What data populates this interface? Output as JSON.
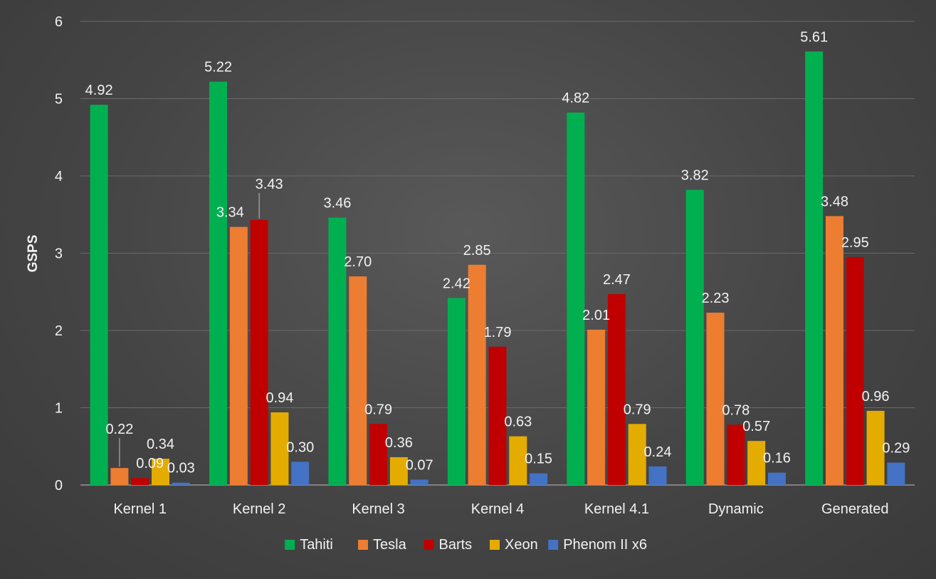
{
  "chart_data": {
    "type": "bar",
    "title": "",
    "xlabel": "",
    "ylabel": "GSPS",
    "ylim": [
      0,
      6
    ],
    "yticks": [
      0,
      1,
      2,
      3,
      4,
      5,
      6
    ],
    "grid": true,
    "legend_position": "bottom",
    "categories": [
      "Kernel 1",
      "Kernel 2",
      "Kernel 3",
      "Kernel 4",
      "Kernel 4.1",
      "Dynamic",
      "Generated"
    ],
    "series": [
      {
        "name": "Tahiti",
        "color": "#00b050",
        "values": [
          4.92,
          5.22,
          3.46,
          2.42,
          4.82,
          3.82,
          5.61
        ],
        "labels": [
          "4.92",
          "5.22",
          "3.46",
          "2.42",
          "4.82",
          "3.82",
          "5.61"
        ]
      },
      {
        "name": "Tesla",
        "color": "#ed7d31",
        "values": [
          0.22,
          3.34,
          2.7,
          2.85,
          2.01,
          2.23,
          3.48
        ],
        "labels": [
          "0.22",
          "3.34",
          "2.70",
          "2.85",
          "2.01",
          "2.23",
          "3.48"
        ]
      },
      {
        "name": "Barts",
        "color": "#c00000",
        "values": [
          0.09,
          3.43,
          0.79,
          1.79,
          2.47,
          0.78,
          2.95
        ],
        "labels": [
          "0.09",
          "3.43",
          "0.79",
          "1.79",
          "2.47",
          "0.78",
          "2.95"
        ]
      },
      {
        "name": "Xeon",
        "color": "#e5ac00",
        "values": [
          0.34,
          0.94,
          0.36,
          0.63,
          0.79,
          0.57,
          0.96
        ],
        "labels": [
          "0.34",
          "0.94",
          "0.36",
          "0.63",
          "0.79",
          "0.57",
          "0.96"
        ]
      },
      {
        "name": "Phenom II x6",
        "color": "#4472c4",
        "values": [
          0.03,
          0.3,
          0.07,
          0.15,
          0.24,
          0.16,
          0.29
        ],
        "labels": [
          "0.03",
          "0.30",
          "0.07",
          "0.15",
          "0.24",
          "0.16",
          "0.29"
        ]
      }
    ]
  }
}
